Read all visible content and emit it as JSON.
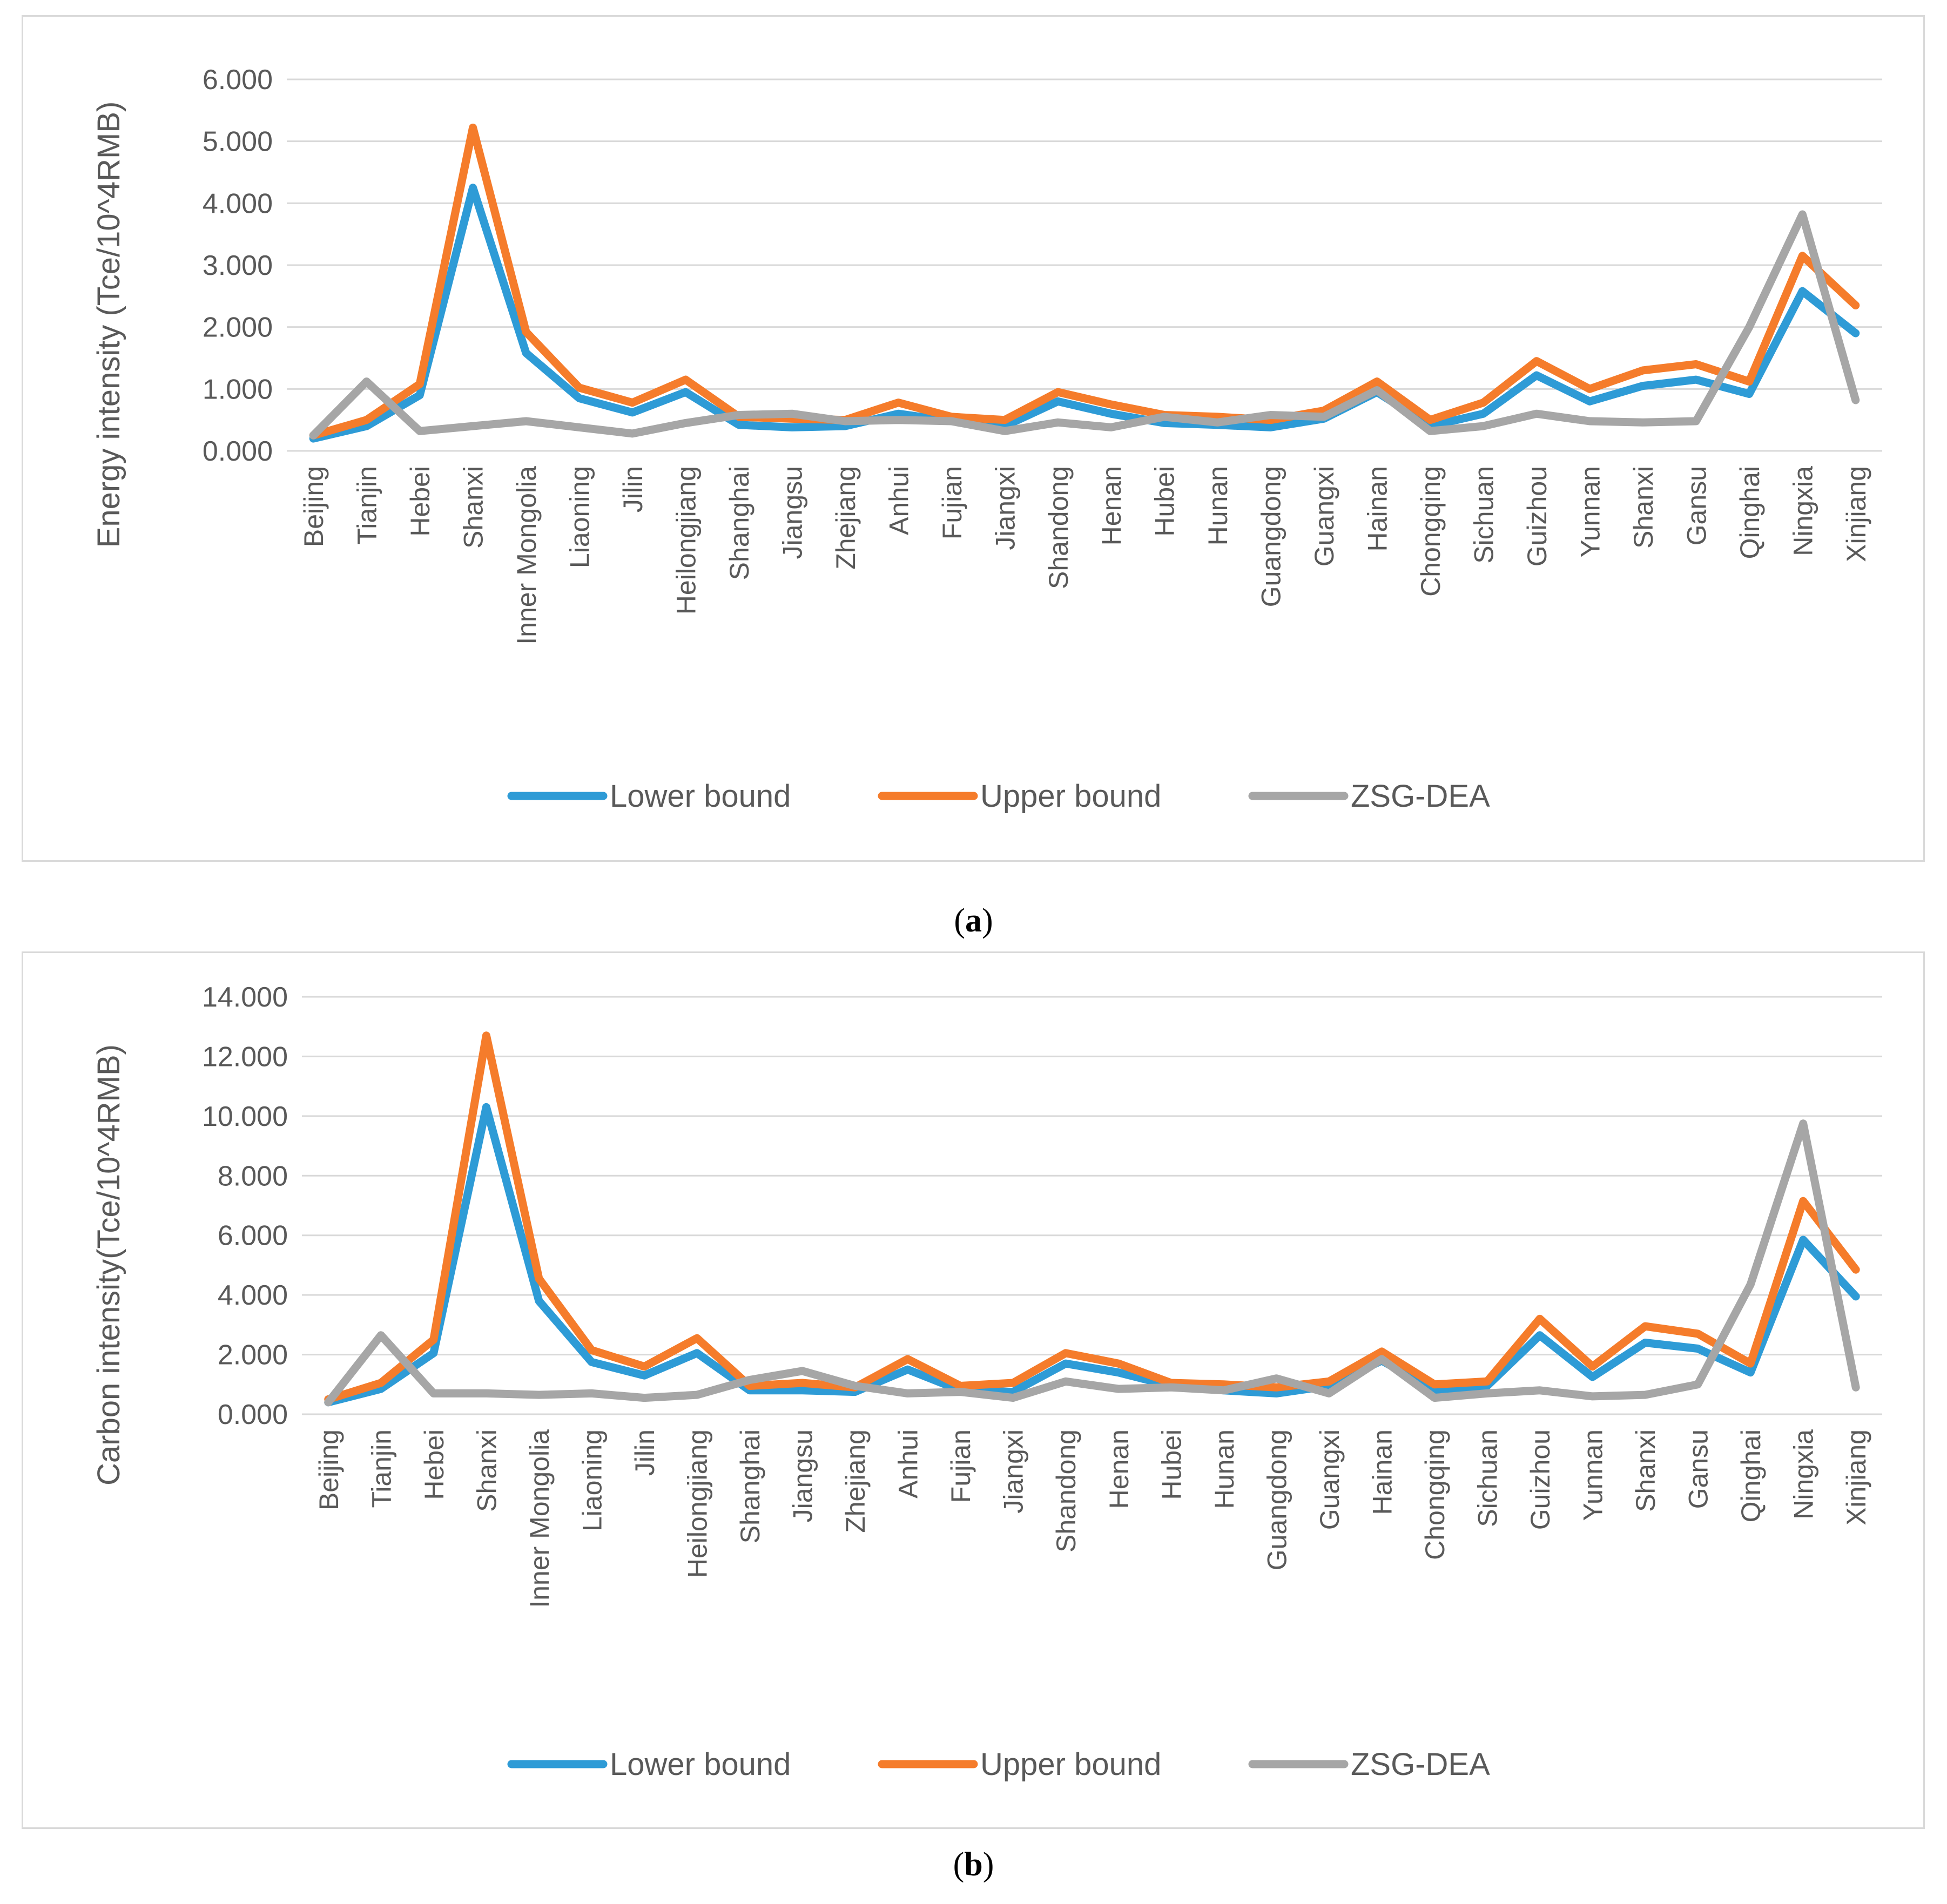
{
  "chart_data": [
    {
      "id": "a",
      "type": "line",
      "caption_label": "a",
      "ylabel": "Energy intensity (Tce/10^4RMB)",
      "ylim": [
        0,
        6
      ],
      "yticks": [
        "0.000",
        "1.000",
        "2.000",
        "3.000",
        "4.000",
        "5.000",
        "6.000"
      ],
      "ytick_values": [
        0,
        1,
        2,
        3,
        4,
        5,
        6
      ],
      "grid": true,
      "legend_position": "bottom",
      "categories": [
        "Beijing",
        "Tianjin",
        "Hebei",
        "Shanxi",
        "Inner Mongolia",
        "Liaoning",
        "Jilin",
        "Heilongjiang",
        "Shanghai",
        "Jiangsu",
        "Zhejiang",
        "Anhui",
        "Fujian",
        "Jiangxi",
        "Shandong",
        "Henan",
        "Hubei",
        "Hunan",
        "Guangdong",
        "Guangxi",
        "Hainan",
        "Chongqing",
        "Sichuan",
        "Guizhou",
        "Yunnan",
        "Shanxi",
        "Gansu",
        "Qinghai",
        "Ningxia",
        "Xinjiang"
      ],
      "series": [
        {
          "name": "Lower bound",
          "color": "#2e9bd6",
          "values": [
            0.2,
            0.4,
            0.9,
            4.25,
            1.58,
            0.85,
            0.62,
            0.95,
            0.42,
            0.38,
            0.4,
            0.6,
            0.48,
            0.4,
            0.8,
            0.6,
            0.45,
            0.42,
            0.38,
            0.52,
            0.95,
            0.4,
            0.6,
            1.22,
            0.8,
            1.05,
            1.15,
            0.92,
            2.58,
            1.9
          ]
        },
        {
          "name": "Upper bound",
          "color": "#f57c2b",
          "values": [
            0.25,
            0.5,
            1.08,
            5.22,
            1.92,
            1.02,
            0.78,
            1.15,
            0.55,
            0.52,
            0.5,
            0.78,
            0.55,
            0.5,
            0.95,
            0.75,
            0.58,
            0.55,
            0.5,
            0.65,
            1.12,
            0.5,
            0.78,
            1.45,
            1.0,
            1.3,
            1.4,
            1.12,
            3.15,
            2.35
          ]
        },
        {
          "name": "ZSG-DEA",
          "color": "#a6a6a6",
          "values": [
            0.25,
            1.12,
            0.32,
            0.4,
            0.48,
            0.38,
            0.28,
            0.45,
            0.58,
            0.6,
            0.48,
            0.5,
            0.48,
            0.32,
            0.46,
            0.38,
            0.55,
            0.46,
            0.58,
            0.55,
            0.98,
            0.32,
            0.4,
            0.6,
            0.48,
            0.46,
            0.48,
            2.0,
            3.82,
            0.82
          ]
        }
      ]
    },
    {
      "id": "b",
      "type": "line",
      "caption_label": "b",
      "ylabel": "Carbon intensity(Tce/10^4RMB)",
      "ylim": [
        0,
        14
      ],
      "yticks": [
        "0.000",
        "2.000",
        "4.000",
        "6.000",
        "8.000",
        "10.000",
        "12.000",
        "14.000"
      ],
      "ytick_values": [
        0,
        2,
        4,
        6,
        8,
        10,
        12,
        14
      ],
      "grid": true,
      "legend_position": "bottom",
      "categories": [
        "Beijing",
        "Tianjin",
        "Hebei",
        "Shanxi",
        "Inner Mongolia",
        "Liaoning",
        "Jilin",
        "Heilongjiang",
        "Shanghai",
        "Jiangsu",
        "Zhejiang",
        "Anhui",
        "Fujian",
        "Jiangxi",
        "Shandong",
        "Henan",
        "Hubei",
        "Hunan",
        "Guangdong",
        "Guangxi",
        "Hainan",
        "Chongqing",
        "Sichuan",
        "Guizhou",
        "Yunnan",
        "Shanxi",
        "Gansu",
        "Qinghai",
        "Ningxia",
        "Xinjiang"
      ],
      "series": [
        {
          "name": "Lower bound",
          "color": "#2e9bd6",
          "values": [
            0.4,
            0.85,
            2.05,
            10.3,
            3.8,
            1.75,
            1.3,
            2.05,
            0.8,
            0.8,
            0.75,
            1.5,
            0.8,
            0.75,
            1.7,
            1.4,
            0.95,
            0.8,
            0.7,
            0.95,
            1.8,
            0.8,
            0.95,
            2.65,
            1.25,
            2.4,
            2.2,
            1.4,
            5.85,
            3.95
          ]
        },
        {
          "name": "Upper bound",
          "color": "#f57c2b",
          "values": [
            0.5,
            1.05,
            2.5,
            12.7,
            4.55,
            2.15,
            1.6,
            2.55,
            0.95,
            1.05,
            0.9,
            1.85,
            0.95,
            1.05,
            2.05,
            1.7,
            1.05,
            1.0,
            0.9,
            1.1,
            2.1,
            1.0,
            1.1,
            3.2,
            1.6,
            2.95,
            2.7,
            1.7,
            7.15,
            4.85
          ]
        },
        {
          "name": "ZSG-DEA",
          "color": "#a6a6a6",
          "values": [
            0.4,
            2.65,
            0.7,
            0.7,
            0.65,
            0.7,
            0.55,
            0.65,
            1.15,
            1.45,
            0.95,
            0.7,
            0.75,
            0.55,
            1.1,
            0.85,
            0.9,
            0.8,
            1.2,
            0.7,
            1.85,
            0.55,
            0.7,
            0.8,
            0.6,
            0.65,
            1.0,
            4.35,
            9.75,
            0.9
          ]
        }
      ]
    }
  ]
}
